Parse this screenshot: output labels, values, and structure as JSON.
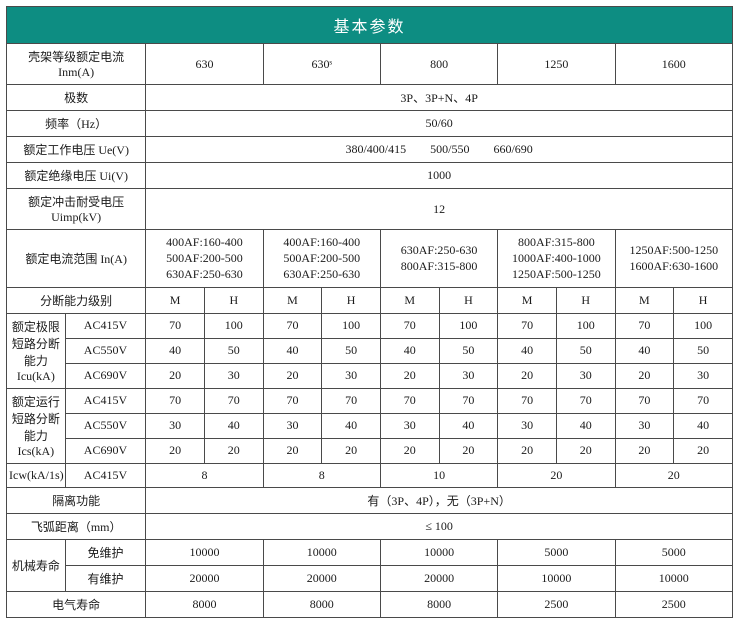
{
  "title": "基本参数",
  "labels": {
    "inm": "壳架等级额定电流 Inm(A)",
    "poles": "极数",
    "freq": "频率（Hz）",
    "ue": "额定工作电压 Ue(V)",
    "ui": "额定绝缘电压 Ui(V)",
    "uimp": "额定冲击耐受电压 Uimp(kV)",
    "in": "额定电流范围 In(A)",
    "break_grade": "分断能力级别",
    "icu": "额定极限短路分断能力 Icu(kA)",
    "ics": "额定运行短路分断能力 Ics(kA)",
    "icw": "Icw(kA/1s)",
    "isolation": "隔离功能",
    "arc": "飞弧距离（mm）",
    "mech": "机械寿命",
    "no_maint": "免维护",
    "with_maint": "有维护",
    "elec": "电气寿命"
  },
  "volt_rows": {
    "ac415": "AC415V",
    "ac550": "AC550V",
    "ac690": "AC690V"
  },
  "inm_values": [
    "630",
    "630ˢ",
    "800",
    "1250",
    "1600"
  ],
  "poles_value": "3P、3P+N、4P",
  "freq_value": "50/60",
  "ue_value": "380/400/415  500/550  660/690",
  "ui_value": "1000",
  "uimp_value": "12",
  "in_ranges": [
    "400AF:160-400\n500AF:200-500\n630AF:250-630",
    "400AF:160-400\n500AF:200-500\n630AF:250-630",
    "630AF:250-630\n800AF:315-800",
    "800AF:315-800\n1000AF:400-1000\n1250AF:500-1250",
    "1250AF:500-1250\n1600AF:630-1600"
  ],
  "break_grade_sub": [
    "M",
    "H",
    "M",
    "H",
    "M",
    "H",
    "M",
    "H",
    "M",
    "H"
  ],
  "icu": {
    "ac415": [
      "70",
      "100",
      "70",
      "100",
      "70",
      "100",
      "70",
      "100",
      "70",
      "100"
    ],
    "ac550": [
      "40",
      "50",
      "40",
      "50",
      "40",
      "50",
      "40",
      "50",
      "40",
      "50"
    ],
    "ac690": [
      "20",
      "30",
      "20",
      "30",
      "20",
      "30",
      "20",
      "30",
      "20",
      "30"
    ]
  },
  "ics": {
    "ac415": [
      "70",
      "70",
      "70",
      "70",
      "70",
      "70",
      "70",
      "70",
      "70",
      "70"
    ],
    "ac550": [
      "30",
      "40",
      "30",
      "40",
      "30",
      "40",
      "30",
      "40",
      "30",
      "40"
    ],
    "ac690": [
      "20",
      "20",
      "20",
      "20",
      "20",
      "20",
      "20",
      "20",
      "20",
      "20"
    ]
  },
  "icw_values": [
    "8",
    "8",
    "10",
    "20",
    "20"
  ],
  "isolation_value": "有（3P、4P），无（3P+N）",
  "arc_value": "≤ 100",
  "mech_no_maint": [
    "10000",
    "10000",
    "10000",
    "5000",
    "5000"
  ],
  "mech_with_maint": [
    "20000",
    "20000",
    "20000",
    "10000",
    "10000"
  ],
  "elec_values": [
    "8000",
    "8000",
    "8000",
    "2500",
    "2500"
  ]
}
